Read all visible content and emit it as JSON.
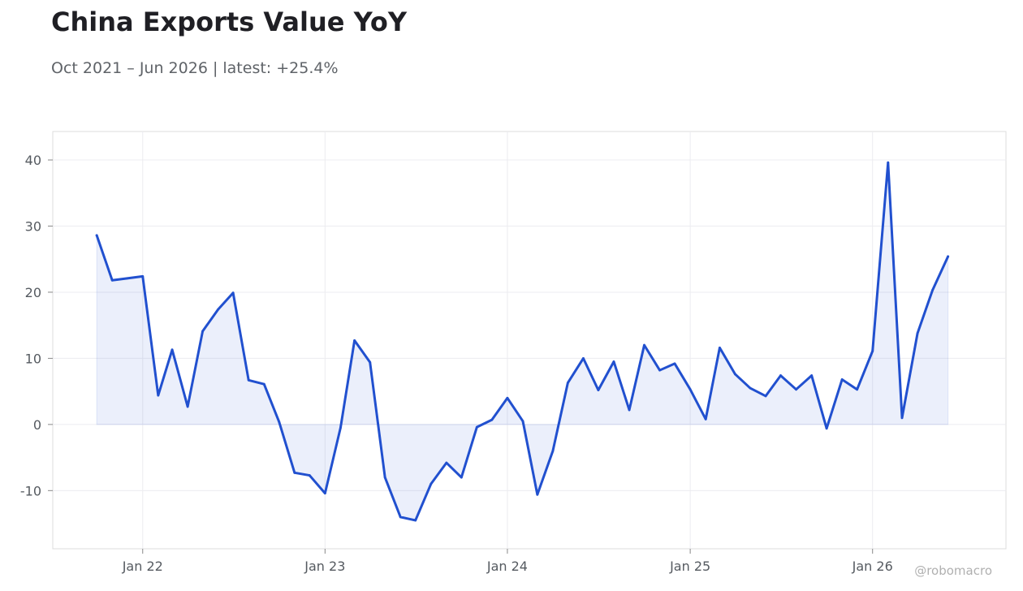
{
  "title": "China Exports Value YoY",
  "subtitle": "Oct 2021 – Jun 2026 | latest: +25.4%",
  "watermark": "@robomacro",
  "colors": {
    "line": "#2150cf",
    "fill": "#2150cf",
    "grid": "#ececf0",
    "frame": "#dcdcdc",
    "text": "#555a60"
  },
  "chart_data": {
    "type": "area",
    "grid": true,
    "x_tick_labels": [
      "Jan 22",
      "Jan 23",
      "Jan 24",
      "Jan 25",
      "Jan 26"
    ],
    "y_ticks": [
      -10,
      0,
      10,
      20,
      30,
      40
    ],
    "ylim": [
      -18.8,
      44.3
    ],
    "xlim": [
      "2021-07-05",
      "2026-09-25"
    ],
    "series": [
      {
        "x": [
          "2021-10-01",
          "2021-11-01",
          "2021-12-01",
          "2022-01-01",
          "2022-02-01",
          "2022-03-01",
          "2022-04-01",
          "2022-05-01",
          "2022-06-01",
          "2022-07-01",
          "2022-08-01",
          "2022-09-01",
          "2022-10-01",
          "2022-11-01",
          "2022-12-01",
          "2023-01-01",
          "2023-02-01",
          "2023-03-01",
          "2023-04-01",
          "2023-05-01",
          "2023-06-01",
          "2023-07-01",
          "2023-08-01",
          "2023-09-01",
          "2023-10-01",
          "2023-11-01",
          "2023-12-01",
          "2024-01-01",
          "2024-02-01",
          "2024-03-01",
          "2024-04-01",
          "2024-05-01",
          "2024-06-01",
          "2024-07-01",
          "2024-08-01",
          "2024-09-01",
          "2024-10-01",
          "2024-11-01",
          "2024-12-01",
          "2025-01-01",
          "2025-02-01",
          "2025-03-01",
          "2025-04-01",
          "2025-05-01",
          "2025-06-01",
          "2025-07-01",
          "2025-08-01",
          "2025-09-01",
          "2025-10-01",
          "2025-11-01",
          "2025-12-01",
          "2026-01-01",
          "2026-02-01",
          "2026-03-01",
          "2026-04-01",
          "2026-05-01",
          "2026-06-01"
        ],
        "values": [
          28.6,
          21.8,
          22.1,
          22.4,
          4.4,
          11.3,
          2.7,
          14.1,
          17.4,
          19.9,
          6.7,
          6.1,
          0.4,
          -7.3,
          -7.7,
          -10.4,
          -0.5,
          12.7,
          9.4,
          -8.0,
          -14.0,
          -14.5,
          -9.0,
          -5.8,
          -8.0,
          -0.4,
          0.7,
          4.0,
          0.5,
          -10.6,
          -4.0,
          6.3,
          10.0,
          5.2,
          9.5,
          2.2,
          12.0,
          8.2,
          9.2,
          5.3,
          0.8,
          11.6,
          7.6,
          5.5,
          4.3,
          7.4,
          5.3,
          7.4,
          -0.6,
          6.8,
          5.3,
          11.1,
          39.6,
          1.0,
          13.8,
          20.3,
          25.4
        ]
      }
    ]
  }
}
